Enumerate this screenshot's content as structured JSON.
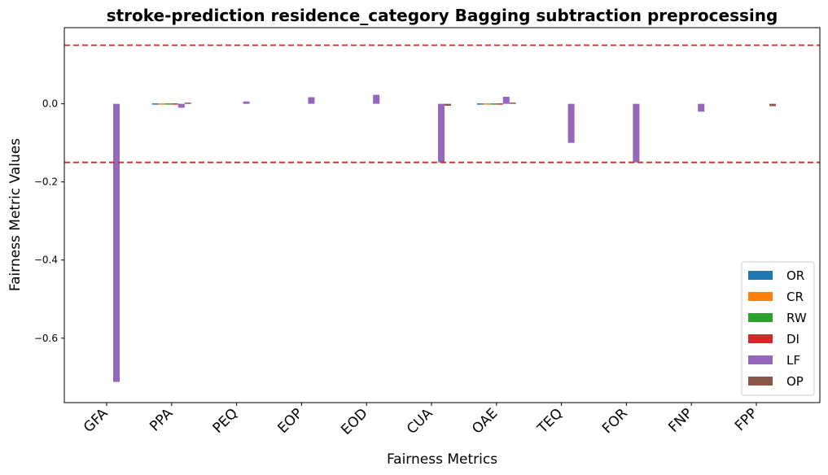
{
  "chart_data": {
    "type": "bar",
    "title": "stroke-prediction residence_category Bagging subtraction preprocessing",
    "xlabel": "Fairness Metrics",
    "ylabel": "Fairness Metric Values",
    "categories": [
      "GFA",
      "PPA",
      "PEQ",
      "EOP",
      "EOD",
      "CUA",
      "OAE",
      "TEQ",
      "FOR",
      "FNP",
      "FPP"
    ],
    "ylim": [
      -0.765,
      0.195
    ],
    "yticks": [
      0.0,
      -0.2,
      -0.4,
      -0.6
    ],
    "ytick_labels": [
      "0.0",
      "−0.2",
      "−0.4",
      "−0.6"
    ],
    "reference_lines": [
      0.15,
      -0.15
    ],
    "reference_line_color": "#d62728",
    "legend_position": "lower-right",
    "series": [
      {
        "name": "OR",
        "color": "#1f77b4",
        "values": [
          0,
          -0.001,
          0,
          0,
          0,
          0,
          -0.001,
          0,
          0,
          0,
          0
        ]
      },
      {
        "name": "CR",
        "color": "#ff7f0e",
        "values": [
          0,
          -0.001,
          0,
          0,
          0,
          0,
          -0.001,
          0,
          0,
          0,
          0
        ]
      },
      {
        "name": "RW",
        "color": "#2ca02c",
        "values": [
          0,
          -0.001,
          0,
          0,
          0,
          0,
          -0.001,
          0,
          0,
          0,
          0
        ]
      },
      {
        "name": "DI",
        "color": "#d62728",
        "values": [
          0,
          -0.001,
          0,
          0,
          0,
          0,
          -0.001,
          0,
          0,
          0,
          0
        ]
      },
      {
        "name": "LF",
        "color": "#9467bd",
        "values": [
          -0.712,
          -0.01,
          0.006,
          0.017,
          0.023,
          -0.15,
          0.018,
          -0.1,
          -0.15,
          -0.02,
          0
        ]
      },
      {
        "name": "OP",
        "color": "#8c564b",
        "values": [
          0,
          0.003,
          0,
          0,
          0,
          -0.005,
          0.003,
          0,
          0,
          0,
          -0.006
        ]
      }
    ]
  }
}
